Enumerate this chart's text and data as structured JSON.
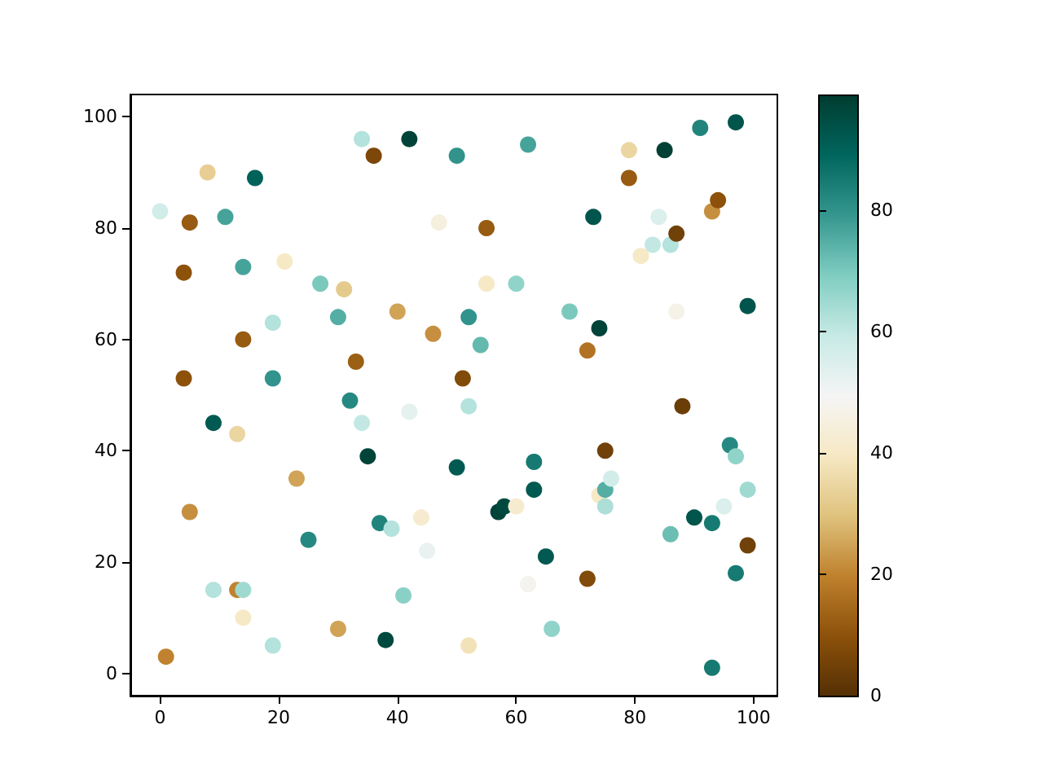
{
  "chart_data": {
    "type": "scatter",
    "marker": "circle",
    "grid": false,
    "xlim": [
      -5,
      104
    ],
    "xticks": [
      0,
      20,
      40,
      60,
      80,
      100
    ],
    "ylim": [
      -4,
      104
    ],
    "yticks": [
      0,
      20,
      40,
      60,
      80,
      100
    ],
    "clim": [
      0,
      99
    ],
    "cticks": [
      0,
      20,
      40,
      60,
      80
    ],
    "x": [
      0,
      1,
      4,
      4,
      5,
      5,
      8,
      9,
      9,
      11,
      13,
      13,
      14,
      14,
      14,
      14,
      16,
      19,
      19,
      19,
      21,
      23,
      25,
      27,
      30,
      30,
      31,
      32,
      33,
      34,
      34,
      35,
      36,
      37,
      39,
      40,
      41,
      38,
      42,
      42,
      44,
      45,
      46,
      47,
      50,
      50,
      51,
      52,
      52,
      52,
      54,
      55,
      55,
      57,
      58,
      60,
      60,
      62,
      62,
      63,
      63,
      65,
      66,
      69,
      72,
      72,
      73,
      74,
      75,
      74,
      75,
      75,
      76,
      79,
      79,
      81,
      83,
      84,
      85,
      86,
      87,
      87,
      86,
      88,
      90,
      91,
      93,
      93,
      93,
      94,
      95,
      96,
      97,
      97,
      97,
      99,
      99,
      99
    ],
    "values": [
      83,
      3,
      72,
      53,
      81,
      29,
      90,
      45,
      15,
      82,
      43,
      15,
      15,
      10,
      73,
      60,
      89,
      63,
      53,
      5,
      74,
      35,
      24,
      70,
      64,
      8,
      69,
      49,
      56,
      96,
      45,
      39,
      93,
      27,
      26,
      65,
      14,
      6,
      96,
      47,
      28,
      22,
      61,
      81,
      93,
      37,
      53,
      64,
      48,
      5,
      59,
      80,
      70,
      29,
      30,
      30,
      70,
      95,
      16,
      38,
      33,
      21,
      8,
      65,
      58,
      17,
      82,
      62,
      40,
      32,
      33,
      30,
      35,
      94,
      89,
      75,
      77,
      82,
      94,
      77,
      79,
      65,
      25,
      48,
      28,
      98,
      83,
      27,
      1,
      85,
      30,
      41,
      39,
      99,
      18,
      66,
      33,
      23
    ],
    "cvalues": [
      57,
      20,
      10,
      10,
      12,
      22,
      33,
      92,
      62,
      77,
      35,
      20,
      65,
      40,
      77,
      12,
      90,
      62,
      80,
      62,
      40,
      25,
      82,
      70,
      75,
      25,
      32,
      82,
      13,
      62,
      60,
      97,
      7,
      83,
      62,
      25,
      68,
      96,
      97,
      53,
      42,
      52,
      22,
      45,
      80,
      92,
      8,
      80,
      62,
      38,
      73,
      12,
      40,
      97,
      96,
      42,
      67,
      77,
      48,
      85,
      92,
      92,
      67,
      70,
      17,
      8,
      93,
      97,
      5,
      40,
      75,
      63,
      57,
      35,
      12,
      40,
      60,
      55,
      98,
      62,
      5,
      47,
      72,
      4,
      93,
      83,
      22,
      85,
      85,
      10,
      55,
      82,
      67,
      93,
      85,
      93,
      65,
      5
    ]
  }
}
